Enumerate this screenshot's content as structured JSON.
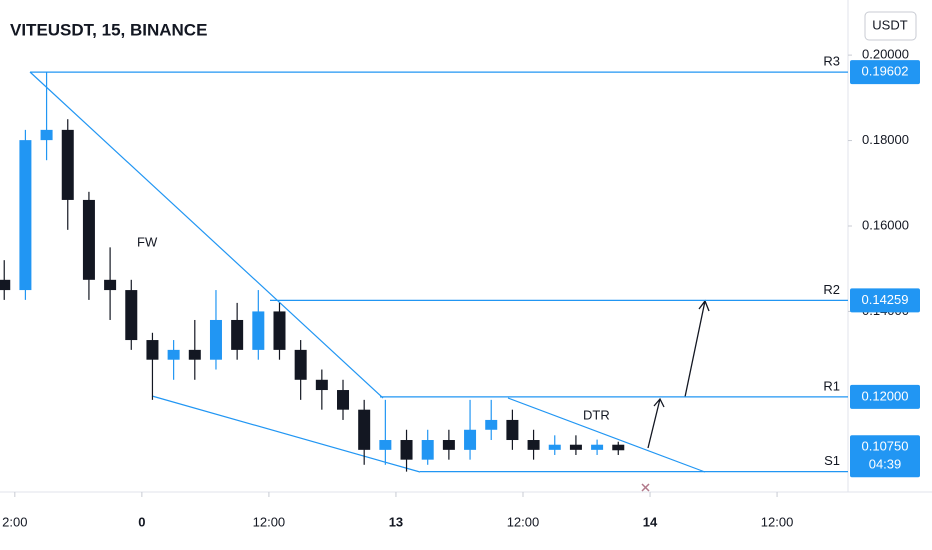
{
  "chart_data": {
    "type": "candlestick",
    "title": "VITEUSDT, 15, BINANCE",
    "currency": "USDT",
    "x": [
      -13,
      -11,
      -9,
      -7,
      -5,
      -3,
      -1,
      1,
      3,
      5,
      7,
      9,
      11,
      13,
      15,
      17,
      19,
      21,
      23,
      25,
      27,
      29,
      31,
      33,
      35,
      37,
      39,
      41,
      43,
      45
    ],
    "open": [
      0.1474,
      0.145,
      0.1801,
      0.1825,
      0.1661,
      0.1474,
      0.145,
      0.1333,
      0.1287,
      0.131,
      0.1287,
      0.138,
      0.131,
      0.14,
      0.131,
      0.124,
      0.1216,
      0.117,
      0.1076,
      0.1099,
      0.1053,
      0.1099,
      0.1076,
      0.1123,
      0.1146,
      0.1099,
      0.1076,
      0.1088,
      0.1076,
      0.1088
    ],
    "high": [
      0.152,
      0.1825,
      0.196,
      0.185,
      0.168,
      0.155,
      0.1474,
      0.135,
      0.1333,
      0.138,
      0.145,
      0.142,
      0.145,
      0.142,
      0.1333,
      0.1264,
      0.124,
      0.1193,
      0.1193,
      0.1123,
      0.1123,
      0.1123,
      0.1193,
      0.1193,
      0.117,
      0.1123,
      0.111,
      0.111,
      0.11,
      0.1095
    ],
    "low": [
      0.1427,
      0.1427,
      0.1754,
      0.1591,
      0.1427,
      0.138,
      0.131,
      0.1193,
      0.124,
      0.124,
      0.1264,
      0.1287,
      0.1287,
      0.1287,
      0.1193,
      0.117,
      0.1146,
      0.1041,
      0.1041,
      0.1025,
      0.1041,
      0.1053,
      0.1053,
      0.1099,
      0.1076,
      0.1053,
      0.1064,
      0.1064,
      0.1064,
      0.1064
    ],
    "close": [
      0.145,
      0.1801,
      0.1825,
      0.1661,
      0.1474,
      0.145,
      0.1333,
      0.1287,
      0.131,
      0.1287,
      0.138,
      0.131,
      0.14,
      0.131,
      0.124,
      0.1216,
      0.117,
      0.1076,
      0.1099,
      0.1053,
      0.1099,
      0.1076,
      0.1123,
      0.1146,
      0.1099,
      0.1076,
      0.1088,
      0.1076,
      0.1088,
      0.1075
    ],
    "up_color": "#2196f3",
    "down_color": "#131722",
    "xlim": [
      -13.4,
      66.7
    ],
    "xticks": [
      {
        "value": -12,
        "label": "2:00"
      },
      0,
      {
        "value": 12,
        "label": "12:00"
      },
      {
        "value": 24,
        "label": "13"
      },
      {
        "value": 36,
        "label": "12:00"
      },
      {
        "value": 48,
        "label": "14"
      },
      {
        "value": 60,
        "label": "12:00"
      }
    ],
    "ylim": [
      0.0982,
      0.2129
    ],
    "yticks": [
      {
        "value": 0.2,
        "label": "0.20000"
      },
      {
        "value": 0.18,
        "label": "0.18000"
      },
      {
        "value": 0.16,
        "label": "0.16000"
      },
      {
        "value": 0.14,
        "label": "0.14000"
      }
    ],
    "levels": [
      {
        "name": "R3",
        "value": 0.19602,
        "label": "0.19602"
      },
      {
        "name": "R2",
        "value": 0.14259,
        "label": "0.14259"
      },
      {
        "name": "R1",
        "value": 0.12,
        "label": "0.12000"
      },
      {
        "name": "S1",
        "value": 0.1025
      }
    ],
    "level_color": "#2196f3",
    "last_price": {
      "value": 0.1075,
      "label": "0.10750",
      "countdown": "04:39"
    },
    "annotations": [
      "FW",
      "DTR"
    ]
  }
}
